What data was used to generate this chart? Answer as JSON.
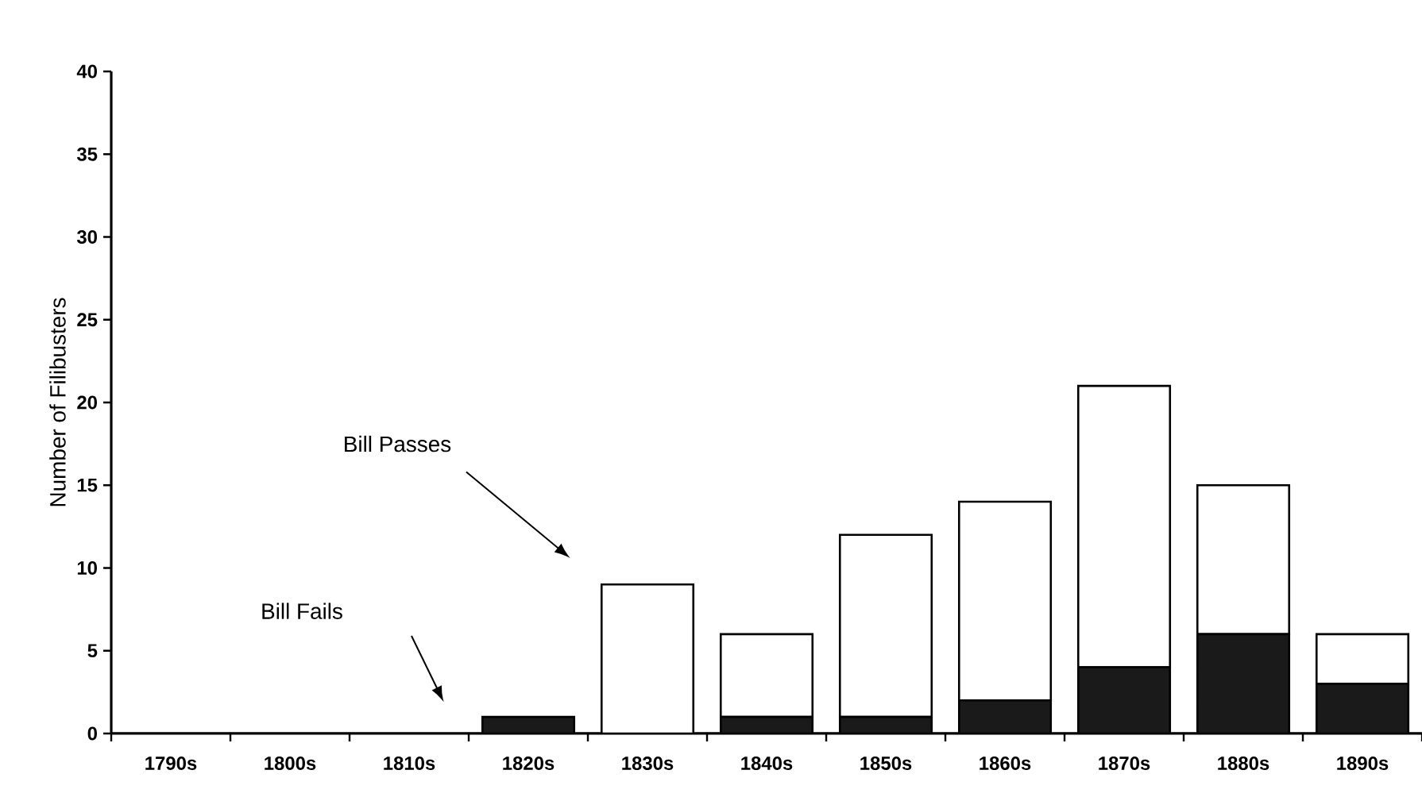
{
  "chart_data": {
    "type": "bar",
    "stacked": true,
    "ylabel": "Number of Filibusters",
    "categories": [
      "1790s",
      "1800s",
      "1810s",
      "1820s",
      "1830s",
      "1840s",
      "1850s",
      "1860s",
      "1870s",
      "1880s",
      "1890s"
    ],
    "series": [
      {
        "color": "#1a1a1a",
        "values": [
          0,
          0,
          0,
          1,
          0,
          1,
          1,
          2,
          4,
          6,
          3
        ]
      },
      {
        "color": "#ffffff",
        "values": [
          0,
          0,
          0,
          0,
          9,
          5,
          11,
          12,
          17,
          9,
          3
        ]
      }
    ],
    "annotations": [
      "Bill Fails",
      "Bill Passes"
    ],
    "ylim": [
      0,
      40
    ],
    "yticks": [
      0,
      5,
      10,
      15,
      20,
      25,
      30,
      35,
      40
    ]
  }
}
